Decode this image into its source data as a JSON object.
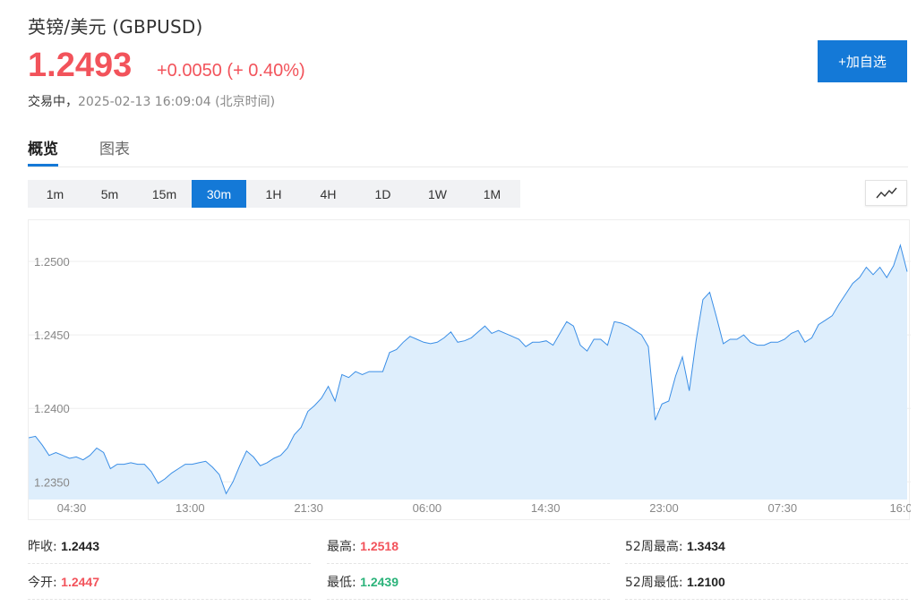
{
  "header": {
    "title": "英镑/美元  (GBPUSD)",
    "price": "1.2493",
    "change": "+0.0050 (+ 0.40%)",
    "status": "交易中，",
    "timestamp": "2025-02-13 16:09:04  (北京时间)",
    "add_button": "+加自选"
  },
  "tabs": [
    {
      "label": "概览",
      "active": true
    },
    {
      "label": "图表",
      "active": false
    }
  ],
  "periods": [
    {
      "label": "1m"
    },
    {
      "label": "5m"
    },
    {
      "label": "15m"
    },
    {
      "label": "30m",
      "active": true
    },
    {
      "label": "1H"
    },
    {
      "label": "4H"
    },
    {
      "label": "1D"
    },
    {
      "label": "1W"
    },
    {
      "label": "1M"
    }
  ],
  "chart_type_icon": "line-chart-icon",
  "colors": {
    "up": "#f2535b",
    "down": "#2bb37a",
    "accent": "#1479d7",
    "line": "#3a8ee6",
    "fill": "#deeefc"
  },
  "chart_data": {
    "type": "area",
    "x_tick_labels": [
      "04:30",
      "13:00",
      "21:30",
      "06:00",
      "14:30",
      "23:00",
      "07:30",
      "16:0"
    ],
    "y_tick_labels": [
      "1.2500",
      "1.2450",
      "1.2400",
      "1.2350"
    ],
    "y_ticks": [
      1.25,
      1.245,
      1.24,
      1.235
    ],
    "ylim": [
      1.2338,
      1.2528
    ],
    "grid": true,
    "values": [
      1.238,
      1.2381,
      1.2375,
      1.2368,
      1.237,
      1.2368,
      1.2366,
      1.2367,
      1.2365,
      1.2368,
      1.2373,
      1.237,
      1.2359,
      1.2362,
      1.2362,
      1.2363,
      1.2362,
      1.2362,
      1.2357,
      1.2349,
      1.2352,
      1.2356,
      1.2359,
      1.2362,
      1.2362,
      1.2363,
      1.2364,
      1.236,
      1.2355,
      1.2342,
      1.235,
      1.2361,
      1.2371,
      1.2367,
      1.2361,
      1.2363,
      1.2366,
      1.2368,
      1.2373,
      1.2382,
      1.2387,
      1.2398,
      1.2402,
      1.2407,
      1.2415,
      1.2405,
      1.2423,
      1.2421,
      1.2425,
      1.2423,
      1.2425,
      1.2425,
      1.2425,
      1.2438,
      1.244,
      1.2445,
      1.2449,
      1.2447,
      1.2445,
      1.2444,
      1.2445,
      1.2448,
      1.2452,
      1.2445,
      1.2446,
      1.2448,
      1.2452,
      1.2456,
      1.2451,
      1.2453,
      1.2451,
      1.2449,
      1.2447,
      1.2442,
      1.2445,
      1.2445,
      1.2446,
      1.2443,
      1.2451,
      1.2459,
      1.2456,
      1.2443,
      1.2439,
      1.2447,
      1.2447,
      1.2443,
      1.2459,
      1.2458,
      1.2456,
      1.2453,
      1.245,
      1.2442,
      1.2392,
      1.2403,
      1.2405,
      1.2422,
      1.2435,
      1.2412,
      1.2446,
      1.2474,
      1.2479,
      1.2462,
      1.2444,
      1.2447,
      1.2447,
      1.245,
      1.2445,
      1.2443,
      1.2443,
      1.2445,
      1.2445,
      1.2447,
      1.2451,
      1.2453,
      1.2445,
      1.2448,
      1.2457,
      1.246,
      1.2463,
      1.2471,
      1.2478,
      1.2485,
      1.2489,
      1.2496,
      1.2491,
      1.2496,
      1.2489,
      1.2497,
      1.2511,
      1.2493
    ]
  },
  "stats": [
    {
      "label": "昨收:",
      "value": "1.2443",
      "tone": "neutral"
    },
    {
      "label": "最高:",
      "value": "1.2518",
      "tone": "up"
    },
    {
      "label": "52周最高:",
      "value": "1.3434",
      "tone": "neutral"
    },
    {
      "label": "今开:",
      "value": "1.2447",
      "tone": "up"
    },
    {
      "label": "最低:",
      "value": "1.2439",
      "tone": "down"
    },
    {
      "label": "52周最低:",
      "value": "1.2100",
      "tone": "neutral"
    }
  ]
}
